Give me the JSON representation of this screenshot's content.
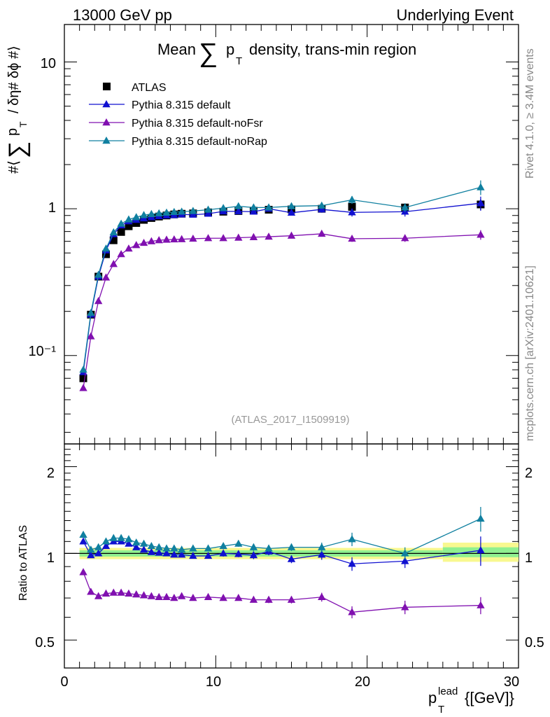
{
  "header": {
    "left": "13000 GeV pp",
    "right": "Underlying Event",
    "title_prefix": "Mean",
    "title_p": "p",
    "title_sub": "T",
    "title_suffix": "density, trans-min region",
    "analysis_id": "(ATLAS_2017_I1509919)",
    "side_rivet": "Rivet 4.1.0, ≥ 3.4M events",
    "side_site": "mcplots.cern.ch [arXiv:2401.10621]"
  },
  "axes": {
    "ylabel_top_hash": "#⟨",
    "ylabel_top_p": "p",
    "ylabel_top_sub": "T",
    "ylabel_top_rest": "/ δη# δϕ #⟩",
    "ylabel_ratio": "Ratio to ATLAS",
    "xlabel_p": "p",
    "xlabel_sub": "T",
    "xlabel_sup": "lead",
    "xlabel_unit": "{[GeV]}",
    "x_ticks": [
      "0",
      "10",
      "20",
      "30"
    ],
    "top_ticks": [
      "10⁻¹",
      "1",
      "10"
    ],
    "ratio_ticks_left": [
      "0.5",
      "1",
      "2"
    ],
    "ratio_ticks_right": [
      "0.5",
      "1",
      "2"
    ]
  },
  "colors": {
    "atlas": "#000000",
    "default": "#1010d0",
    "nofsr": "#8010b0",
    "norap": "#1080a0",
    "band_inner": "#90f090",
    "band_outer": "#f8f890"
  },
  "chart_data": {
    "type": "line",
    "title": "Mean Σ pT density, trans-min region",
    "xlabel": "pT lead [GeV]",
    "ylabel_top": "⟨Σ pT / δη δϕ⟩",
    "ylabel_ratio": "Ratio to ATLAS",
    "x_range": [
      0,
      30
    ],
    "y_range_top": [
      0.025,
      18
    ],
    "y_scale_top": "log",
    "y_range_ratio": [
      0.4,
      2.4
    ],
    "y_scale_ratio": "log",
    "legend_position": "top-left",
    "x": [
      1.25,
      1.75,
      2.25,
      2.75,
      3.25,
      3.75,
      4.25,
      4.75,
      5.25,
      5.75,
      6.25,
      6.75,
      7.25,
      7.75,
      8.5,
      9.5,
      10.5,
      11.5,
      12.5,
      13.5,
      15.0,
      17.0,
      19.0,
      22.5,
      27.5
    ],
    "band": [
      {
        "x0": 1.0,
        "x1": 25.0,
        "inner": [
          0.975,
          1.025
        ],
        "outer": [
          0.955,
          1.045
        ]
      },
      {
        "x0": 25.0,
        "x1": 30.0,
        "inner": [
          0.97,
          1.05
        ],
        "outer": [
          0.935,
          1.09
        ]
      }
    ],
    "series": [
      {
        "name": "ATLAS",
        "key": "atlas",
        "marker": "square",
        "values": [
          0.07,
          0.19,
          0.345,
          0.49,
          0.61,
          0.695,
          0.76,
          0.8,
          0.84,
          0.865,
          0.885,
          0.9,
          0.915,
          0.925,
          0.93,
          0.945,
          0.955,
          0.965,
          0.97,
          0.985,
          0.99,
          1.0,
          1.03,
          1.02,
          1.07
        ],
        "errors": [
          0.003,
          0.004,
          0.005,
          0.006,
          0.006,
          0.007,
          0.007,
          0.008,
          0.008,
          0.008,
          0.009,
          0.009,
          0.009,
          0.01,
          0.01,
          0.01,
          0.01,
          0.011,
          0.011,
          0.012,
          0.013,
          0.02,
          0.03,
          0.05,
          0.09
        ]
      },
      {
        "name": "Pythia 8.315 default",
        "key": "default",
        "marker": "triangle",
        "values": [
          0.077,
          0.19,
          0.345,
          0.52,
          0.67,
          0.77,
          0.82,
          0.84,
          0.86,
          0.875,
          0.89,
          0.9,
          0.905,
          0.915,
          0.91,
          0.925,
          0.96,
          0.96,
          0.955,
          1.0,
          0.94,
          0.99,
          0.945,
          0.955,
          1.09
        ],
        "errors": [
          0.003,
          0.004,
          0.006,
          0.008,
          0.01,
          0.012,
          0.013,
          0.014,
          0.015,
          0.016,
          0.017,
          0.018,
          0.019,
          0.02,
          0.02,
          0.022,
          0.025,
          0.027,
          0.03,
          0.033,
          0.035,
          0.05,
          0.06,
          0.07,
          0.12
        ],
        "ratio": [
          1.1,
          0.985,
          1.0,
          1.06,
          1.1,
          1.1,
          1.08,
          1.05,
          1.03,
          1.01,
          1.005,
          1.0,
          0.99,
          0.99,
          0.98,
          0.98,
          1.0,
          0.995,
          0.985,
          1.015,
          0.955,
          0.99,
          0.92,
          0.94,
          1.025
        ],
        "ratio_errors": [
          0.015,
          0.015,
          0.015,
          0.02,
          0.02,
          0.02,
          0.02,
          0.02,
          0.02,
          0.02,
          0.02,
          0.02,
          0.02,
          0.02,
          0.02,
          0.02,
          0.025,
          0.025,
          0.03,
          0.03,
          0.03,
          0.04,
          0.05,
          0.05,
          0.12
        ]
      },
      {
        "name": "Pythia 8.315 default-noFsr",
        "key": "nofsr",
        "marker": "triangle",
        "values": [
          0.06,
          0.135,
          0.235,
          0.34,
          0.42,
          0.49,
          0.535,
          0.565,
          0.585,
          0.6,
          0.61,
          0.615,
          0.618,
          0.62,
          0.625,
          0.63,
          0.63,
          0.635,
          0.64,
          0.645,
          0.655,
          0.675,
          0.625,
          0.63,
          0.665
        ],
        "errors": [
          0.002,
          0.003,
          0.004,
          0.006,
          0.007,
          0.008,
          0.009,
          0.01,
          0.01,
          0.011,
          0.011,
          0.012,
          0.012,
          0.013,
          0.013,
          0.014,
          0.015,
          0.016,
          0.017,
          0.018,
          0.02,
          0.025,
          0.03,
          0.035,
          0.05
        ],
        "ratio": [
          0.86,
          0.735,
          0.71,
          0.725,
          0.73,
          0.73,
          0.725,
          0.72,
          0.715,
          0.71,
          0.705,
          0.705,
          0.7,
          0.71,
          0.7,
          0.705,
          0.7,
          0.7,
          0.69,
          0.69,
          0.69,
          0.705,
          0.625,
          0.65,
          0.66
        ],
        "ratio_errors": [
          0.015,
          0.012,
          0.012,
          0.012,
          0.012,
          0.012,
          0.012,
          0.012,
          0.012,
          0.012,
          0.012,
          0.012,
          0.012,
          0.012,
          0.012,
          0.012,
          0.015,
          0.015,
          0.015,
          0.018,
          0.02,
          0.025,
          0.03,
          0.035,
          0.045
        ]
      },
      {
        "name": "Pythia 8.315 default-noRap",
        "key": "norap",
        "marker": "triangle",
        "values": [
          0.08,
          0.195,
          0.355,
          0.535,
          0.69,
          0.79,
          0.845,
          0.875,
          0.905,
          0.92,
          0.93,
          0.94,
          0.95,
          0.955,
          0.965,
          0.985,
          1.01,
          1.04,
          1.02,
          1.02,
          1.04,
          1.05,
          1.15,
          1.02,
          1.4
        ],
        "errors": [
          0.003,
          0.004,
          0.006,
          0.008,
          0.01,
          0.012,
          0.013,
          0.014,
          0.015,
          0.016,
          0.017,
          0.018,
          0.019,
          0.02,
          0.02,
          0.022,
          0.025,
          0.027,
          0.03,
          0.033,
          0.035,
          0.05,
          0.07,
          0.07,
          0.16
        ],
        "ratio": [
          1.16,
          1.03,
          1.05,
          1.1,
          1.13,
          1.13,
          1.12,
          1.09,
          1.08,
          1.06,
          1.05,
          1.04,
          1.04,
          1.03,
          1.04,
          1.04,
          1.06,
          1.08,
          1.05,
          1.04,
          1.05,
          1.05,
          1.12,
          1.0,
          1.32
        ],
        "ratio_errors": [
          0.015,
          0.015,
          0.015,
          0.02,
          0.02,
          0.02,
          0.02,
          0.02,
          0.02,
          0.02,
          0.02,
          0.02,
          0.02,
          0.02,
          0.02,
          0.02,
          0.025,
          0.025,
          0.03,
          0.03,
          0.03,
          0.04,
          0.06,
          0.05,
          0.13
        ]
      }
    ]
  }
}
